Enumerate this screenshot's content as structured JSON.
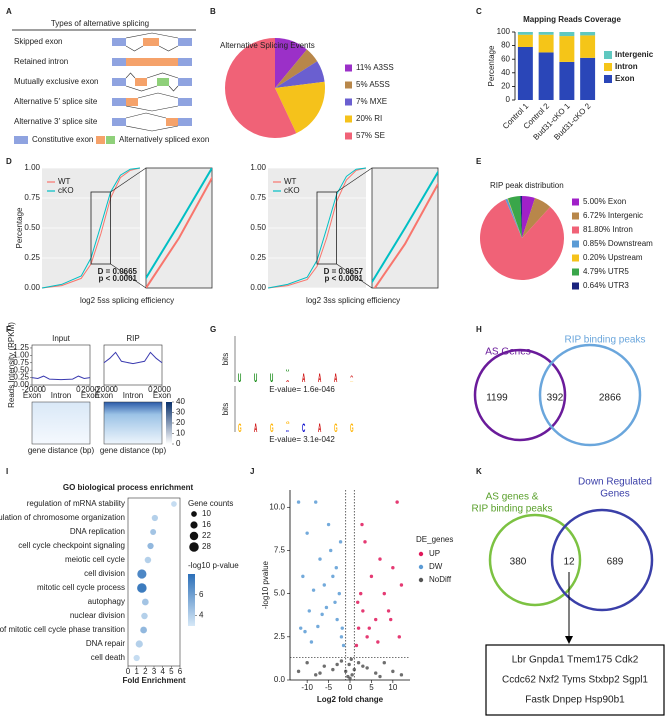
{
  "panel_labels": [
    "A",
    "B",
    "C",
    "D",
    "E",
    "F",
    "G",
    "H",
    "I",
    "J",
    "K"
  ],
  "splicing_types": {
    "title": "Types of alternative splicing",
    "types": [
      "Skipped exon",
      "Retained intron",
      "Mutually exclusive exon",
      "Alternative 5′ splice site",
      "Alternative 3′ splice site"
    ],
    "legend": [
      "Constitutive exon",
      "Alternatively spliced exon"
    ]
  },
  "chart_data": [
    {
      "type": "pie",
      "title": "Alternative Splicing Events",
      "categories": [
        "11% A3SS",
        "5% A5SS",
        "7% MXE",
        "20% RI",
        "57% SE"
      ],
      "values": [
        11,
        5,
        7,
        20,
        57
      ],
      "colors": [
        "#9b30c8",
        "#b8874a",
        "#6a5fd0",
        "#f5c21b",
        "#f06277"
      ]
    },
    {
      "type": "stacked_bar",
      "title": "Mapping Reads Coverage",
      "ylabel": "Percentage",
      "categories": [
        "Control 1",
        "Control 2",
        "Bud31-cKO 1",
        "Bud31-cKO 2"
      ],
      "series": [
        {
          "name": "Exon",
          "color": "#2a46b8",
          "values": [
            78,
            70,
            56,
            62
          ]
        },
        {
          "name": "Intron",
          "color": "#f5c518",
          "values": [
            18,
            26,
            38,
            33
          ]
        },
        {
          "name": "Intergenic",
          "color": "#5fc8c0",
          "values": [
            4,
            4,
            6,
            5
          ]
        }
      ],
      "ylim": [
        0,
        100
      ],
      "yticks": [
        0,
        20,
        40,
        60,
        80,
        100
      ]
    },
    {
      "type": "ecdf",
      "xlabel": "log2 5ss splicing efficiency",
      "ylabel": "Percentage",
      "x": [
        -8,
        -6,
        -4,
        -3,
        -2,
        -1,
        0,
        1,
        2
      ],
      "series": [
        {
          "name": "WT",
          "color": "#f8766d",
          "values": [
            0,
            0.02,
            0.08,
            0.2,
            0.45,
            0.75,
            0.92,
            0.98,
            1
          ]
        },
        {
          "name": "cKO",
          "color": "#00bfc4",
          "values": [
            0,
            0.03,
            0.1,
            0.25,
            0.52,
            0.8,
            0.94,
            0.99,
            1
          ]
        }
      ],
      "xlim": [
        -8,
        2
      ],
      "ylim": [
        0,
        1
      ],
      "yticks": [
        {
          "value": 0,
          "label": "0.00"
        },
        {
          "value": 0.25,
          "label": "0.25"
        },
        {
          "value": 0.5,
          "label": "0.50"
        },
        {
          "value": 0.75,
          "label": "0.75"
        },
        {
          "value": 1,
          "label": "1.00"
        }
      ],
      "annotations": [
        "D = 0.0665",
        "p < 0.0001"
      ],
      "zoom": {
        "xlim": [
          -3,
          -1
        ],
        "ylim": [
          0.2,
          0.8
        ]
      }
    },
    {
      "type": "ecdf",
      "xlabel": "log2 3ss splicing efficiency",
      "x": [
        -8,
        -6,
        -4,
        -3,
        -2,
        -1,
        0,
        1,
        2
      ],
      "series": [
        {
          "name": "WT",
          "color": "#f8766d",
          "values": [
            0,
            0.02,
            0.07,
            0.18,
            0.42,
            0.72,
            0.9,
            0.98,
            1
          ]
        },
        {
          "name": "cKO",
          "color": "#00bfc4",
          "values": [
            0,
            0.03,
            0.09,
            0.23,
            0.5,
            0.78,
            0.93,
            0.99,
            1
          ]
        }
      ],
      "xlim": [
        -8,
        2
      ],
      "ylim": [
        0,
        1
      ],
      "yticks": [
        {
          "value": 0,
          "label": "0.00"
        },
        {
          "value": 0.25,
          "label": "0.25"
        },
        {
          "value": 0.5,
          "label": "0.50"
        },
        {
          "value": 0.75,
          "label": "0.75"
        },
        {
          "value": 1,
          "label": "1.00"
        }
      ],
      "annotations": [
        "D = 0.0657",
        "p < 0.0001"
      ],
      "zoom": {
        "xlim": [
          -3,
          -1
        ],
        "ylim": [
          0.2,
          0.8
        ]
      }
    },
    {
      "type": "pie",
      "title": "RIP peak distribution",
      "categories": [
        "5.00% Exon",
        "6.72% Intergenic",
        "81.80% Intron",
        "0.85% Downstream",
        "0.20% Upstream",
        "4.79% UTR5",
        "0.64% UTR3"
      ],
      "values": [
        5,
        6.72,
        81.8,
        0.85,
        0.2,
        4.79,
        0.64
      ],
      "colors": [
        "#a020c8",
        "#b8874a",
        "#f06277",
        "#5b9bd5",
        "#f5c21b",
        "#3aa64a",
        "#1a237e"
      ]
    },
    {
      "type": "profile",
      "title": "Input",
      "ylabel": "Reads Intensity (RPKM)",
      "x": [
        0,
        10,
        20,
        30,
        50,
        70,
        80,
        90,
        100
      ],
      "values": [
        0.25,
        0.22,
        0.3,
        0.2,
        0.18,
        0.2,
        0.3,
        0.22,
        0.25
      ],
      "color": "#3b3bb0",
      "xlim": [
        0,
        100
      ],
      "ylim": [
        0,
        1.35
      ],
      "yticks": [
        {
          "value": 0,
          "label": "0.00"
        },
        {
          "value": 0.25,
          "label": "0.25"
        },
        {
          "value": 0.5,
          "label": "0.50"
        },
        {
          "value": 0.75,
          "label": "0.75"
        },
        {
          "value": 1,
          "label": "1.00"
        },
        {
          "value": 1.25,
          "label": "1.25"
        }
      ],
      "xticks": [
        {
          "value": 0,
          "label": "-2000"
        },
        {
          "value": 20,
          "label": "0"
        },
        {
          "value": 80,
          "label": "0"
        },
        {
          "value": 100,
          "label": "2000"
        }
      ],
      "regions": [
        "Exon",
        "Intron",
        "Exon"
      ]
    },
    {
      "type": "profile",
      "title": "RIP",
      "x": [
        0,
        10,
        20,
        30,
        50,
        70,
        80,
        90,
        100
      ],
      "values": [
        0.75,
        0.9,
        1.1,
        0.8,
        0.72,
        0.8,
        1.1,
        0.9,
        0.75
      ],
      "color": "#3b3bb0",
      "xlim": [
        0,
        100
      ],
      "ylim": [
        0,
        1.35
      ],
      "xticks": [
        {
          "value": 0,
          "label": "-2000"
        },
        {
          "value": 20,
          "label": "0"
        },
        {
          "value": 80,
          "label": "0"
        },
        {
          "value": 100,
          "label": "2000"
        }
      ],
      "regions": [
        "Exon",
        "Intron",
        "Exon"
      ]
    },
    {
      "type": "dotplot",
      "title": "GO biological process enrichment",
      "xlabel": "Fold Enrichment",
      "categories": [
        "regulation of mRNA stability",
        "regulation of chromosome organization",
        "DNA replication",
        "cell cycle checkpoint signaling",
        "meiotic cell cycle",
        "cell division",
        "mitotic cell cycle process",
        "autophagy",
        "nuclear division",
        "regulation of mitotic cell cycle phase transition",
        "DNA repair",
        "cell death"
      ],
      "values": [
        5.3,
        3.1,
        2.9,
        2.6,
        2.3,
        1.6,
        1.6,
        2.0,
        1.9,
        1.8,
        1.3,
        1.0
      ],
      "sizes": [
        10,
        12,
        11,
        12,
        13,
        26,
        28,
        14,
        13,
        14,
        16,
        12
      ],
      "color_values": [
        3.5,
        4,
        4.5,
        5,
        4,
        7,
        7.5,
        4.5,
        4,
        5,
        4,
        3.5
      ],
      "xlim": [
        0,
        6
      ],
      "xticks": [
        0,
        1,
        2,
        3,
        4,
        5,
        6
      ],
      "size_legend_title": "Gene counts",
      "size_legend": [
        10,
        16,
        22,
        28
      ],
      "color_legend_title": "-log10 p-value",
      "color_ticks": [
        4,
        6
      ],
      "clim": [
        3,
        8
      ]
    },
    {
      "type": "volcano",
      "xlabel": "Log2 fold change",
      "ylabel": "-log10 pvalue",
      "legend_title": "DE_genes",
      "xlim": [
        -14,
        14
      ],
      "ylim": [
        0,
        11
      ],
      "xticks": [
        -10,
        -5,
        0,
        5,
        10
      ],
      "yticks": [
        {
          "value": 0,
          "label": "0.0"
        },
        {
          "value": 2.5,
          "label": "2.5"
        },
        {
          "value": 5,
          "label": "5.0"
        },
        {
          "value": 7.5,
          "label": "7.5"
        },
        {
          "value": 10,
          "label": "10.0"
        }
      ],
      "vlines": [
        -1,
        1
      ],
      "hline": 1.3,
      "series": [
        {
          "name": "UP",
          "color": "#e0185a",
          "x": [
            1.5,
            2,
            2.5,
            3,
            3.5,
            4,
            5,
            6,
            7,
            8,
            9,
            10,
            11,
            12,
            1.8,
            2.8,
            4.5,
            6.5,
            9.5,
            11.5
          ],
          "values": [
            2,
            3,
            5,
            4,
            8,
            2.5,
            6,
            3.5,
            7,
            5,
            4,
            6.5,
            10.3,
            5.5,
            4.5,
            9,
            3,
            2.2,
            3.5,
            2.5
          ]
        },
        {
          "name": "DW",
          "color": "#5b9bd5",
          "x": [
            -12,
            -11,
            -10,
            -9.5,
            -8,
            -7,
            -6,
            -5,
            -4,
            -3.5,
            -3,
            -2.5,
            -2,
            -1.5,
            -11.5,
            -9,
            -6.5,
            -4.5,
            -2.2,
            -1.8,
            -8.5,
            -5.5,
            -3.2,
            -10.5,
            -7.5
          ],
          "values": [
            10.3,
            6,
            8.5,
            4,
            10.3,
            7,
            5.5,
            9,
            6,
            4.5,
            3.5,
            5,
            2.5,
            2,
            3,
            2.2,
            3.8,
            7.5,
            8,
            3,
            5.2,
            4.2,
            6.5,
            2.8,
            3.1
          ]
        },
        {
          "name": "NoDiff",
          "color": "#555555",
          "x": [
            -12,
            -10,
            -8,
            -6,
            -4,
            -2,
            -1,
            -0.5,
            0,
            0.5,
            1,
            2,
            4,
            6,
            8,
            10,
            12,
            -3,
            3,
            -7,
            7,
            -0.2,
            0.3
          ],
          "values": [
            0.5,
            1,
            0.3,
            0.8,
            0.6,
            1.1,
            0.5,
            0.2,
            0.1,
            0.3,
            0.6,
            1,
            0.7,
            0.4,
            1,
            0.5,
            0.3,
            0.9,
            0.8,
            0.4,
            0.2,
            0.9,
            1.2
          ]
        }
      ]
    }
  ],
  "motifs": [
    {
      "ylabel": "bits",
      "evalue": "E-value= 1.6e-046",
      "positions": [
        [
          {
            "letter": "U",
            "height": 1.9
          }
        ],
        [
          {
            "letter": "U",
            "height": 1.9
          }
        ],
        [
          {
            "letter": "U",
            "height": 1.9
          }
        ],
        [
          {
            "letter": "A",
            "height": 0.45
          },
          {
            "letter": "U",
            "height": 0.4
          }
        ],
        [
          {
            "letter": "A",
            "height": 1.85
          }
        ],
        [
          {
            "letter": "A",
            "height": 1.85
          }
        ],
        [
          {
            "letter": "A",
            "height": 1.85
          }
        ],
        [
          {
            "letter": "G",
            "height": 0.2
          },
          {
            "letter": "A",
            "height": 0.35
          }
        ]
      ]
    },
    {
      "ylabel": "bits",
      "evalue": "E-value= 3.1e-042",
      "positions": [
        [
          {
            "letter": "G",
            "height": 1.85
          }
        ],
        [
          {
            "letter": "A",
            "height": 1.85
          }
        ],
        [
          {
            "letter": "G",
            "height": 1.85
          }
        ],
        [
          {
            "letter": "C",
            "height": 0.35
          },
          {
            "letter": "G",
            "height": 0.5
          }
        ],
        [
          {
            "letter": "C",
            "height": 1.85
          }
        ],
        [
          {
            "letter": "A",
            "height": 1.85
          }
        ],
        [
          {
            "letter": "G",
            "height": 1.85
          }
        ],
        [
          {
            "letter": "G",
            "height": 1.85
          }
        ]
      ]
    }
  ],
  "heatmap": {
    "xlabel": "gene distance (bp)",
    "colorbar_ticks": [
      0,
      10,
      20,
      30,
      40
    ],
    "clim": [
      0,
      40
    ]
  },
  "venn": [
    {
      "left": [
        "AS Genes"
      ],
      "right": [
        "RIP binding peaks"
      ],
      "left_only": 1199,
      "both": 392,
      "right_only": 2866
    },
    {
      "left": [
        "AS genes &",
        "RIP binding peaks"
      ],
      "right": [
        "Down Regulated",
        "Genes"
      ],
      "left_only": 380,
      "both": 12,
      "right_only": 689,
      "genes": [
        "Lbr Gnpda1 Tmem175 Cdk2",
        "Ccdc62 Nxf2 Tyms Stxbp2 Sgpl1",
        "Fastk Dnpep Hsp90b1"
      ]
    }
  ]
}
